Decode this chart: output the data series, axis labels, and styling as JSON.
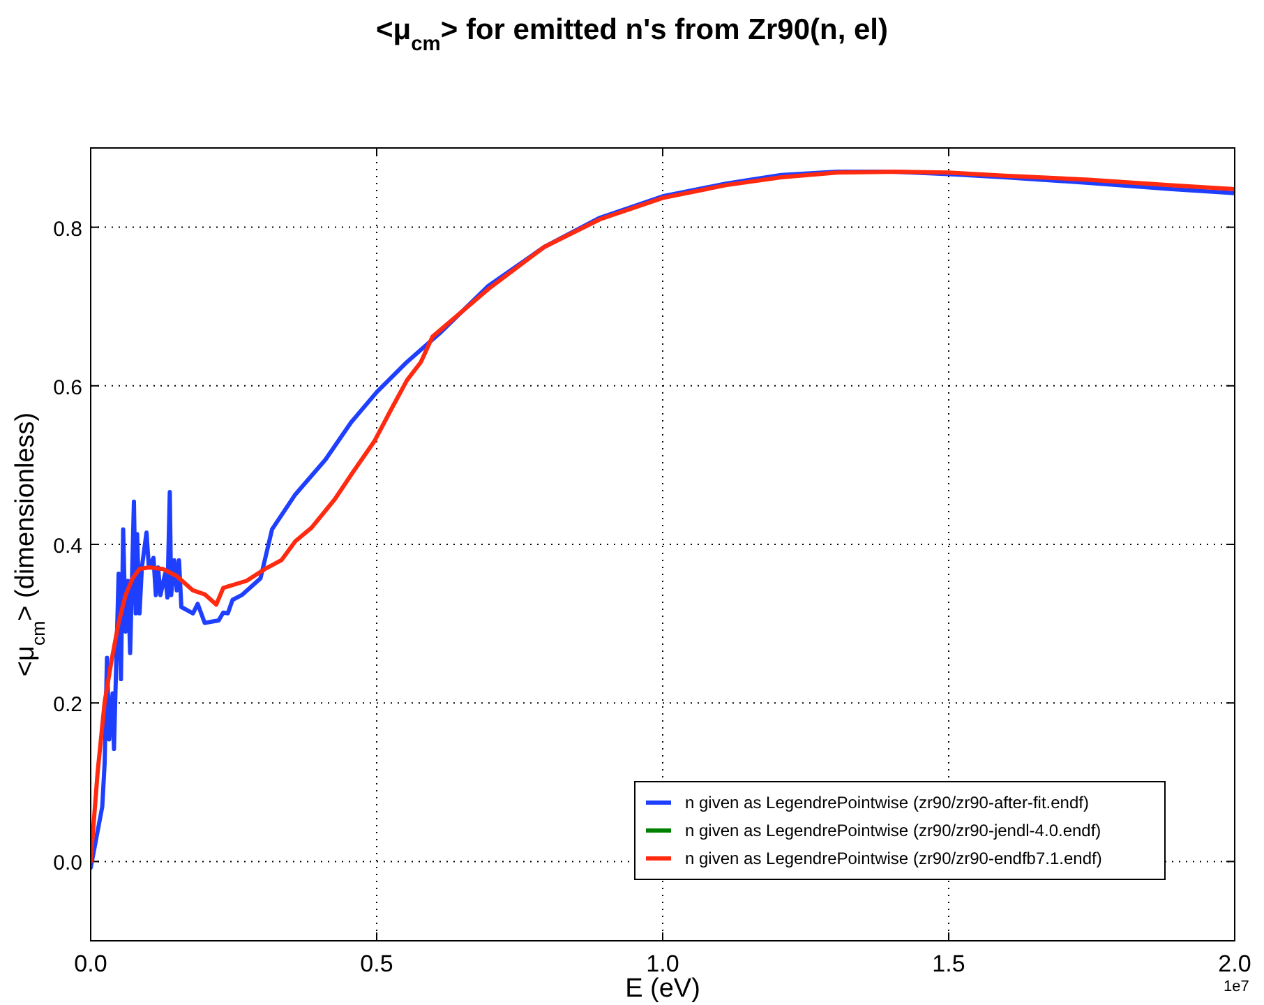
{
  "chart_data": {
    "type": "line",
    "title": "<μ$_{cm}$> for emitted n's from Zr90(n, el)",
    "xlabel": "E (eV)",
    "ylabel": "<μ$_{cm}$> (dimensionless)",
    "xlim": [
      0,
      2
    ],
    "ylim": [
      -0.1,
      0.9
    ],
    "xticks": [
      {
        "value": 0,
        "label": "0.0"
      },
      {
        "value": 0.5,
        "label": "0.5"
      },
      {
        "value": 1,
        "label": "1.0"
      },
      {
        "value": 1.5,
        "label": "1.5"
      },
      {
        "value": 2,
        "label": "2.0"
      }
    ],
    "yticks": [
      {
        "value": 0,
        "label": "0.0"
      },
      {
        "value": 0.2,
        "label": "0.2"
      },
      {
        "value": 0.4,
        "label": "0.4"
      },
      {
        "value": 0.6,
        "label": "0.6"
      },
      {
        "value": 0.8,
        "label": "0.8"
      }
    ],
    "grid": true,
    "legend": "bottom right",
    "line_style": "solid",
    "marker": "none",
    "annotations": [
      "1e7"
    ],
    "series": [
      {
        "name": "n given as LegendrePointwise (zr90/zr90-after-fit.endf)",
        "color": "#1f3fff",
        "x": [
          0,
          0.0202,
          0.0244,
          0.0285,
          0.0324,
          0.0383,
          0.0407,
          0.0488,
          0.0529,
          0.0568,
          0.061,
          0.0651,
          0.069,
          0.0756,
          0.0788,
          0.0812,
          0.0854,
          0.0895,
          0.0976,
          0.1017,
          0.1098,
          0.1139,
          0.1178,
          0.122,
          0.13,
          0.1341,
          0.1383,
          0.1407,
          0.1463,
          0.1505,
          0.1544,
          0.1585,
          0.1788,
          0.1871,
          0.1993,
          0.2237,
          0.2317,
          0.2398,
          0.248,
          0.2641,
          0.2968,
          0.3171,
          0.3578,
          0.4105,
          0.4554,
          0.5,
          0.5529,
          0.6098,
          0.6951,
          0.7927,
          0.8902,
          1.0,
          1.1098,
          1.2073,
          1.3049,
          1.4024,
          1.5,
          1.5976,
          1.7439,
          1.8902,
          2.0
        ],
        "values": [
          -0.008,
          0.069,
          0.124,
          0.257,
          0.154,
          0.212,
          0.142,
          0.363,
          0.23,
          0.419,
          0.29,
          0.354,
          0.263,
          0.454,
          0.313,
          0.413,
          0.313,
          0.371,
          0.415,
          0.371,
          0.383,
          0.336,
          0.371,
          0.336,
          0.363,
          0.333,
          0.466,
          0.336,
          0.38,
          0.342,
          0.38,
          0.321,
          0.313,
          0.325,
          0.301,
          0.304,
          0.314,
          0.313,
          0.33,
          0.336,
          0.357,
          0.419,
          0.463,
          0.507,
          0.554,
          0.592,
          0.63,
          0.666,
          0.726,
          0.775,
          0.812,
          0.839,
          0.855,
          0.866,
          0.87,
          0.87,
          0.867,
          0.863,
          0.856,
          0.848,
          0.843
        ]
      },
      {
        "name": "n given as LegendrePointwise (zr90/zr90-jendl-4.0.endf)",
        "color": "#008000"
      },
      {
        "name": "n given as LegendrePointwise (zr90/zr90-endfb7.1.endf)",
        "color": "#ff2a10",
        "x": [
          0,
          0.0122,
          0.0244,
          0.0366,
          0.0488,
          0.061,
          0.0732,
          0.0854,
          0.1017,
          0.1261,
          0.1505,
          0.1788,
          0.1993,
          0.2195,
          0.2317,
          0.2724,
          0.3049,
          0.3334,
          0.3578,
          0.3861,
          0.4268,
          0.4593,
          0.4959,
          0.5244,
          0.5529,
          0.5773,
          0.5976,
          0.6951,
          0.7927,
          0.8902,
          1.0,
          1.1098,
          1.2073,
          1.3049,
          1.4024,
          1.5,
          1.5976,
          1.7439,
          1.8902,
          2.0
        ],
        "values": [
          0.0,
          0.113,
          0.201,
          0.254,
          0.301,
          0.336,
          0.357,
          0.369,
          0.371,
          0.369,
          0.36,
          0.342,
          0.337,
          0.324,
          0.345,
          0.354,
          0.369,
          0.38,
          0.404,
          0.421,
          0.457,
          0.492,
          0.53,
          0.569,
          0.607,
          0.63,
          0.662,
          0.722,
          0.775,
          0.81,
          0.837,
          0.853,
          0.863,
          0.869,
          0.87,
          0.869,
          0.865,
          0.86,
          0.853,
          0.848
        ]
      }
    ]
  }
}
